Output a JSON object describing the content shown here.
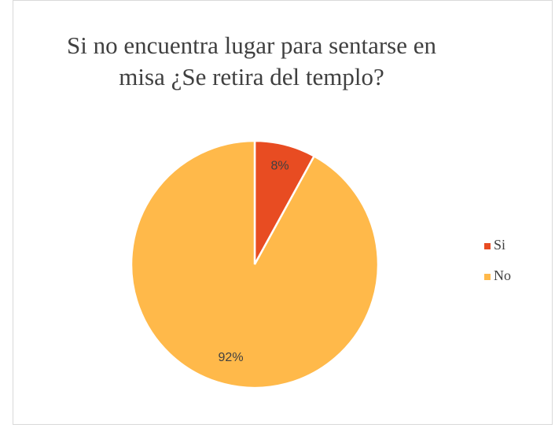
{
  "chart_data": {
    "type": "pie",
    "title": "Si no encuentra lugar para sentarse en misa  ¿Se retira del templo?",
    "categories": [
      "Si",
      "No"
    ],
    "values": [
      8,
      92
    ],
    "value_labels": [
      "8%",
      "92%"
    ],
    "colors": [
      "#e84c22",
      "#ffb94a"
    ],
    "legend": "right"
  }
}
